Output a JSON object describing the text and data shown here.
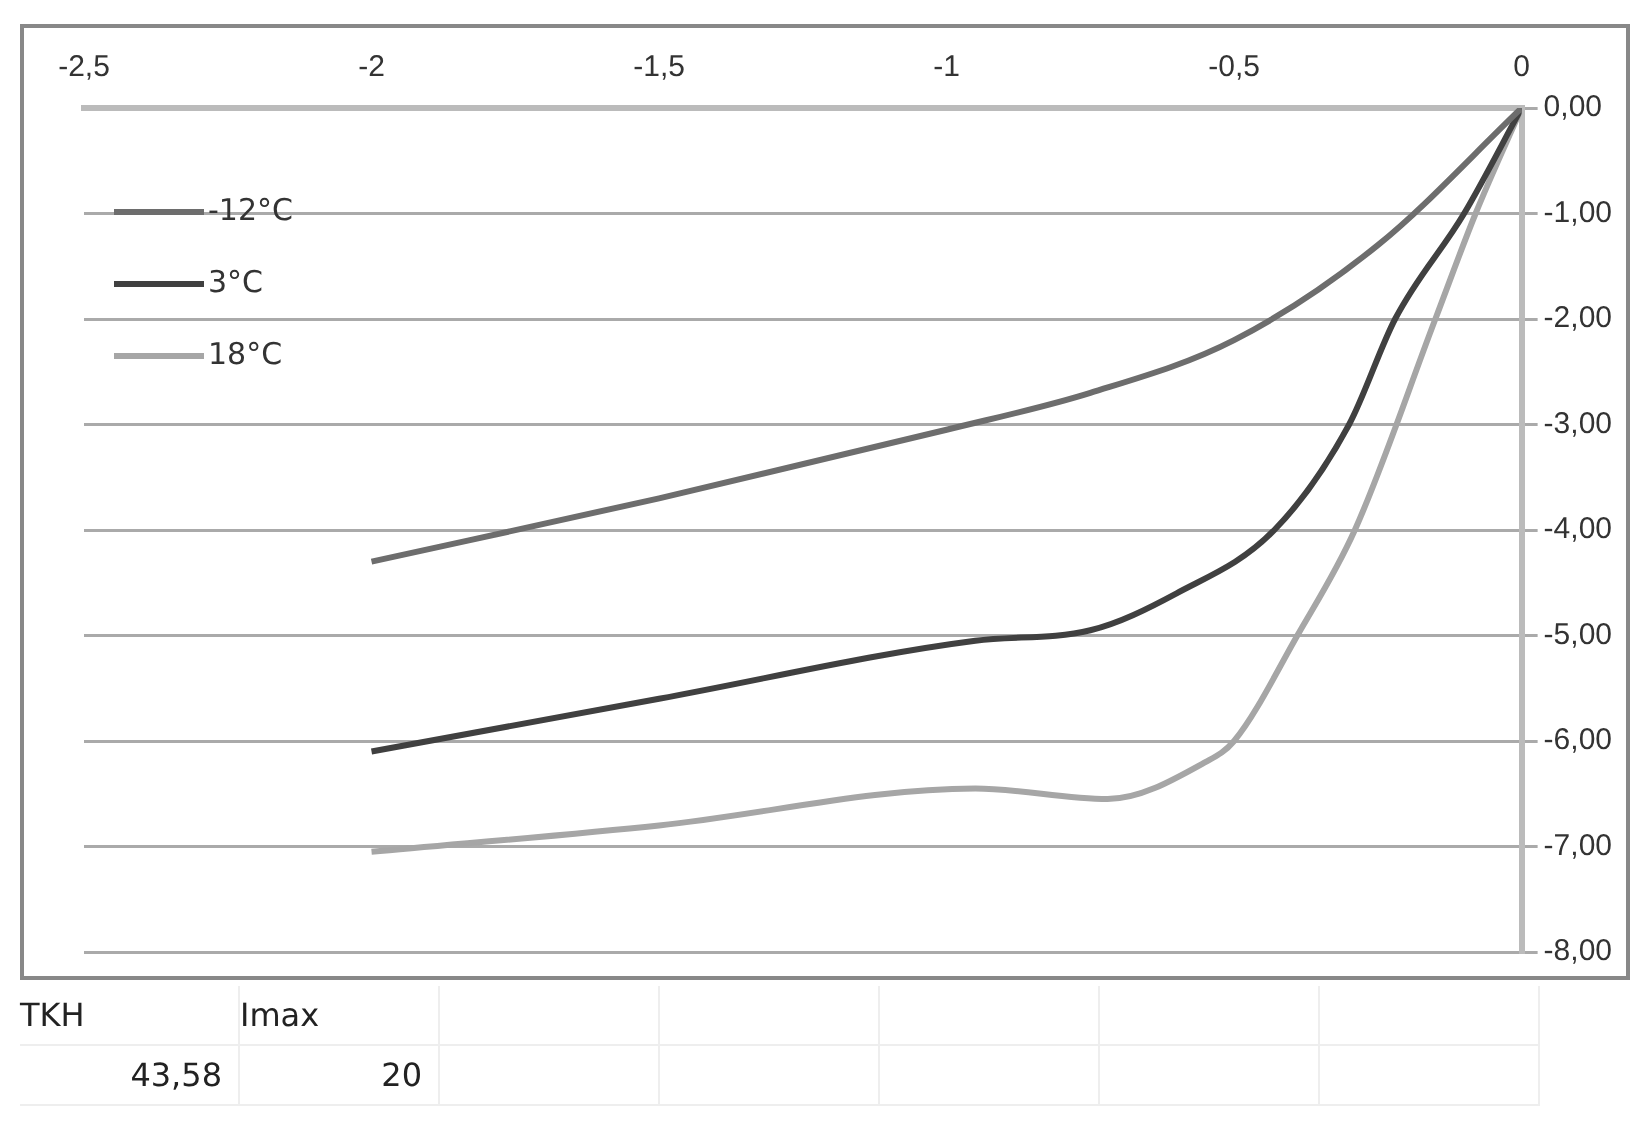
{
  "chart_data": {
    "type": "line",
    "series": [
      {
        "name": "-12°C",
        "color": "#6d6d6d",
        "x": [
          -2,
          -1.5,
          -1,
          -0.75,
          -0.5,
          -0.25,
          0
        ],
        "values": [
          -4.3,
          -3.7,
          -3.05,
          -2.7,
          -2.2,
          -1.3,
          0
        ]
      },
      {
        "name": "3°C",
        "color": "#404040",
        "x": [
          -2,
          -1.5,
          -0.95,
          -0.75,
          -0.6,
          -0.43,
          -0.3,
          -0.22,
          -0.1,
          0
        ],
        "values": [
          -6.1,
          -5.6,
          -5.05,
          -4.95,
          -4.6,
          -4,
          -3,
          -2,
          -1,
          0
        ]
      },
      {
        "name": "18°C",
        "color": "#a6a6a6",
        "x": [
          -2,
          -1.5,
          -0.95,
          -0.72,
          -0.55,
          -0.5,
          -0.39,
          -0.29,
          -0.15,
          -0.08,
          0
        ],
        "values": [
          -7.05,
          -6.8,
          -6.45,
          -6.55,
          -6.2,
          -6,
          -5,
          -4,
          -2,
          -1,
          0
        ]
      }
    ],
    "xlim": [
      -2.5,
      0
    ],
    "xticks": [
      {
        "value": -2.5,
        "label": "-2,5"
      },
      -2,
      {
        "value": -1.5,
        "label": "-1,5"
      },
      -1,
      {
        "value": -0.5,
        "label": "-0,5"
      },
      0
    ],
    "ylim": [
      -8,
      0
    ],
    "yticks": [
      {
        "value": 0,
        "label": "0,00"
      },
      {
        "value": -1,
        "label": "-1,00"
      },
      {
        "value": -2,
        "label": "-2,00"
      },
      {
        "value": -3,
        "label": "-3,00"
      },
      {
        "value": -4,
        "label": "-4,00"
      },
      {
        "value": -5,
        "label": "-5,00"
      },
      {
        "value": -6,
        "label": "-6,00"
      },
      {
        "value": -7,
        "label": "-7,00"
      },
      {
        "value": -8,
        "label": "-8,00"
      }
    ],
    "grid": "y",
    "legend": "top left",
    "marker": "none",
    "line_style": "solid",
    "annotations": [
      "TKH",
      "Imax",
      "43,58",
      "20"
    ]
  }
}
